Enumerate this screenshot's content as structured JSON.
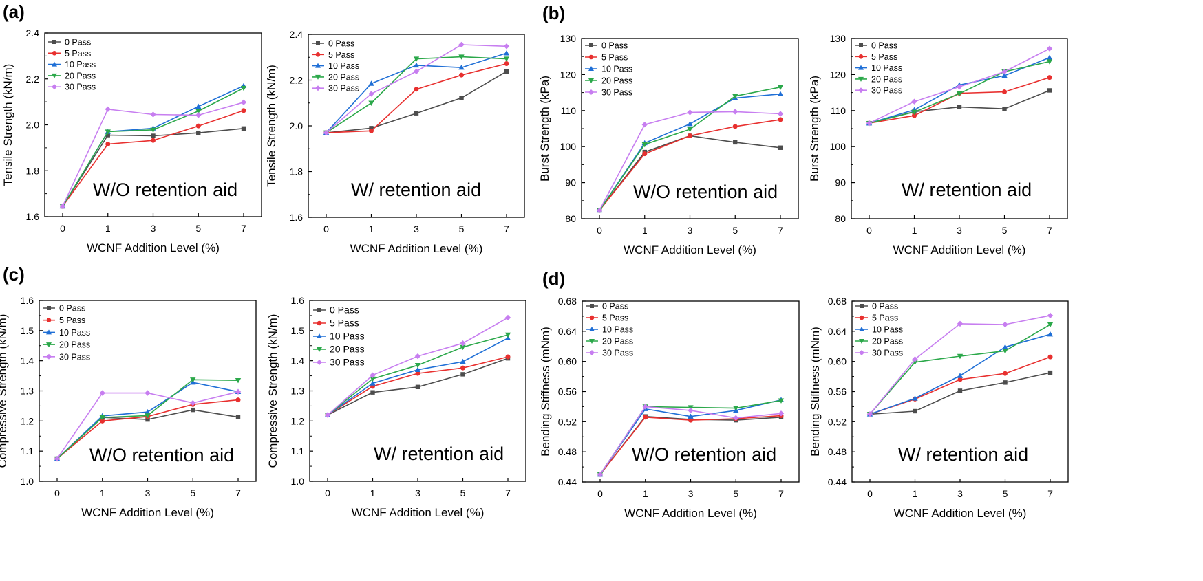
{
  "panel_labels": {
    "a": "(a)",
    "b": "(b)",
    "c": "(c)",
    "d": "(d)"
  },
  "series_colors": {
    "0 Pass": "#4d4d4d",
    "5 Pass": "#e8302f",
    "10 Pass": "#1f6fd6",
    "20 Pass": "#2ba84a",
    "30 Pass": "#c77ef0"
  },
  "series_markers": {
    "0 Pass": "square",
    "5 Pass": "circle",
    "10 Pass": "triangle-up",
    "20 Pass": "triangle-down",
    "30 Pass": "diamond"
  },
  "chart_data": [
    {
      "type": "line",
      "title": "",
      "annotation": "W/O retention aid",
      "xlabel": "WCNF Addition Level (%)",
      "ylabel": "Tensile Strength (kN/m)",
      "categories": [
        "0",
        "1",
        "3",
        "5",
        "7"
      ],
      "ylim": [
        1.6,
        2.4
      ],
      "yticks": [
        "1.6",
        "1.8",
        "2.0",
        "2.2",
        "2.4"
      ],
      "legend": "top-left",
      "series": [
        {
          "name": "0 Pass",
          "values": [
            1.645,
            1.955,
            1.952,
            1.965,
            1.984
          ]
        },
        {
          "name": "5 Pass",
          "values": [
            1.645,
            1.916,
            1.932,
            1.995,
            2.062
          ]
        },
        {
          "name": "10 Pass",
          "values": [
            1.645,
            1.97,
            1.985,
            2.08,
            2.17
          ]
        },
        {
          "name": "20 Pass",
          "values": [
            1.645,
            1.97,
            1.978,
            2.06,
            2.16
          ]
        },
        {
          "name": "30 Pass",
          "values": [
            1.645,
            2.068,
            2.045,
            2.042,
            2.098
          ]
        }
      ]
    },
    {
      "type": "line",
      "title": "",
      "annotation": "W/ retention aid",
      "xlabel": "WCNF Addition Level (%)",
      "ylabel": "Tensile Strength (kN/m)",
      "categories": [
        "0",
        "1",
        "3",
        "5",
        "7"
      ],
      "ylim": [
        1.6,
        2.4
      ],
      "yticks": [
        "1.6",
        "1.8",
        "2.0",
        "2.2",
        "2.4"
      ],
      "legend": "top-left",
      "series": [
        {
          "name": "0 Pass",
          "values": [
            1.97,
            1.99,
            2.055,
            2.122,
            2.238
          ]
        },
        {
          "name": "5 Pass",
          "values": [
            1.97,
            1.978,
            2.16,
            2.222,
            2.272
          ]
        },
        {
          "name": "10 Pass",
          "values": [
            1.97,
            2.185,
            2.265,
            2.255,
            2.318
          ]
        },
        {
          "name": "20 Pass",
          "values": [
            1.97,
            2.1,
            2.293,
            2.302,
            2.293
          ]
        },
        {
          "name": "30 Pass",
          "values": [
            1.97,
            2.14,
            2.238,
            2.355,
            2.348
          ]
        }
      ]
    },
    {
      "type": "line",
      "title": "",
      "annotation": "W/O retention aid",
      "xlabel": "WCNF Addition Level (%)",
      "ylabel": "Burst Strength (kPa)",
      "categories": [
        "0",
        "1",
        "3",
        "5",
        "7"
      ],
      "ylim": [
        80,
        130
      ],
      "yticks": [
        "80",
        "90",
        "100",
        "110",
        "120",
        "130"
      ],
      "legend": "top-left",
      "series": [
        {
          "name": "0 Pass",
          "values": [
            82.3,
            98.5,
            103.0,
            101.2,
            99.7
          ]
        },
        {
          "name": "5 Pass",
          "values": [
            82.3,
            98.0,
            103.0,
            105.6,
            107.5
          ]
        },
        {
          "name": "10 Pass",
          "values": [
            82.3,
            101.0,
            106.3,
            113.5,
            114.6
          ]
        },
        {
          "name": "20 Pass",
          "values": [
            82.3,
            100.6,
            104.8,
            114.0,
            116.5
          ]
        },
        {
          "name": "30 Pass",
          "values": [
            82.3,
            106.1,
            109.5,
            109.7,
            109.1
          ]
        }
      ]
    },
    {
      "type": "line",
      "title": "",
      "annotation": "W/ retention aid",
      "xlabel": "WCNF Addition Level (%)",
      "ylabel": "Burst Strength (kPa)",
      "categories": [
        "0",
        "1",
        "3",
        "5",
        "7"
      ],
      "ylim": [
        80,
        130
      ],
      "yticks": [
        "80",
        "90",
        "100",
        "110",
        "120",
        "130"
      ],
      "legend": "top-left",
      "series": [
        {
          "name": "0 Pass",
          "values": [
            106.5,
            109.7,
            111.0,
            110.5,
            115.6
          ]
        },
        {
          "name": "5 Pass",
          "values": [
            106.5,
            108.6,
            114.8,
            115.2,
            119.2
          ]
        },
        {
          "name": "10 Pass",
          "values": [
            106.5,
            110.2,
            117.1,
            119.7,
            124.7
          ]
        },
        {
          "name": "20 Pass",
          "values": [
            106.5,
            109.6,
            114.7,
            120.8,
            123.6
          ]
        },
        {
          "name": "30 Pass",
          "values": [
            106.5,
            112.5,
            116.6,
            120.8,
            127.2
          ]
        }
      ]
    },
    {
      "type": "line",
      "title": "",
      "annotation": "W/O retention aid",
      "xlabel": "WCNF Addition Level (%)",
      "ylabel": "Compressive Strength (kN/m)",
      "categories": [
        "0",
        "1",
        "3",
        "5",
        "7"
      ],
      "ylim": [
        1.0,
        1.6
      ],
      "yticks": [
        "1.0",
        "1.1",
        "1.2",
        "1.3",
        "1.4",
        "1.5",
        "1.6"
      ],
      "legend": "top-left",
      "series": [
        {
          "name": "0 Pass",
          "values": [
            1.075,
            1.212,
            1.205,
            1.237,
            1.213
          ]
        },
        {
          "name": "5 Pass",
          "values": [
            1.075,
            1.2,
            1.215,
            1.255,
            1.27
          ]
        },
        {
          "name": "10 Pass",
          "values": [
            1.075,
            1.217,
            1.23,
            1.328,
            1.297
          ]
        },
        {
          "name": "20 Pass",
          "values": [
            1.075,
            1.212,
            1.218,
            1.337,
            1.335
          ]
        },
        {
          "name": "30 Pass",
          "values": [
            1.075,
            1.293,
            1.293,
            1.26,
            1.297
          ]
        }
      ]
    },
    {
      "type": "line",
      "title": "",
      "annotation": "W/ retention aid",
      "xlabel": "WCNF Addition Level (%)",
      "ylabel": "Compressive Strength (kN/m)",
      "categories": [
        "0",
        "1",
        "3",
        "5",
        "7"
      ],
      "ylim": [
        1.0,
        1.6
      ],
      "yticks": [
        "1.0",
        "1.1",
        "1.2",
        "1.3",
        "1.4",
        "1.5",
        "1.6"
      ],
      "legend": "top-left",
      "series": [
        {
          "name": "0 Pass",
          "values": [
            1.22,
            1.295,
            1.313,
            1.355,
            1.408
          ]
        },
        {
          "name": "5 Pass",
          "values": [
            1.22,
            1.315,
            1.358,
            1.376,
            1.413
          ]
        },
        {
          "name": "10 Pass",
          "values": [
            1.22,
            1.325,
            1.37,
            1.397,
            1.475
          ]
        },
        {
          "name": "20 Pass",
          "values": [
            1.22,
            1.34,
            1.385,
            1.445,
            1.486
          ]
        },
        {
          "name": "30 Pass",
          "values": [
            1.22,
            1.352,
            1.415,
            1.458,
            1.543
          ]
        }
      ]
    },
    {
      "type": "line",
      "title": "",
      "annotation": "W/O retention aid",
      "xlabel": "WCNF Addition Level (%)",
      "ylabel": "Bending Stiffness (mNm)",
      "categories": [
        "0",
        "1",
        "3",
        "5",
        "7"
      ],
      "ylim": [
        0.44,
        0.68
      ],
      "yticks": [
        "0.44",
        "0.48",
        "0.52",
        "0.56",
        "0.60",
        "0.64",
        "0.68"
      ],
      "legend": "top-left",
      "series": [
        {
          "name": "0 Pass",
          "values": [
            0.45,
            0.527,
            0.523,
            0.522,
            0.526
          ]
        },
        {
          "name": "5 Pass",
          "values": [
            0.45,
            0.526,
            0.522,
            0.524,
            0.528
          ]
        },
        {
          "name": "10 Pass",
          "values": [
            0.45,
            0.537,
            0.527,
            0.535,
            0.549
          ]
        },
        {
          "name": "20 Pass",
          "values": [
            0.45,
            0.54,
            0.539,
            0.538,
            0.548
          ]
        },
        {
          "name": "30 Pass",
          "values": [
            0.45,
            0.54,
            0.535,
            0.525,
            0.531
          ]
        }
      ]
    },
    {
      "type": "line",
      "title": "",
      "annotation": "W/ retention aid",
      "xlabel": "WCNF Addition Level (%)",
      "ylabel": "Bending Stiffness (mNm)",
      "categories": [
        "0",
        "1",
        "3",
        "5",
        "7"
      ],
      "ylim": [
        0.44,
        0.68
      ],
      "yticks": [
        "0.44",
        "0.48",
        "0.52",
        "0.56",
        "0.60",
        "0.64",
        "0.68"
      ],
      "legend": "top-left",
      "series": [
        {
          "name": "0 Pass",
          "values": [
            0.53,
            0.534,
            0.561,
            0.572,
            0.585
          ]
        },
        {
          "name": "5 Pass",
          "values": [
            0.53,
            0.55,
            0.576,
            0.584,
            0.606
          ]
        },
        {
          "name": "10 Pass",
          "values": [
            0.53,
            0.551,
            0.581,
            0.619,
            0.636
          ]
        },
        {
          "name": "20 Pass",
          "values": [
            0.53,
            0.599,
            0.607,
            0.614,
            0.649
          ]
        },
        {
          "name": "30 Pass",
          "values": [
            0.53,
            0.603,
            0.65,
            0.649,
            0.661
          ]
        }
      ]
    }
  ]
}
